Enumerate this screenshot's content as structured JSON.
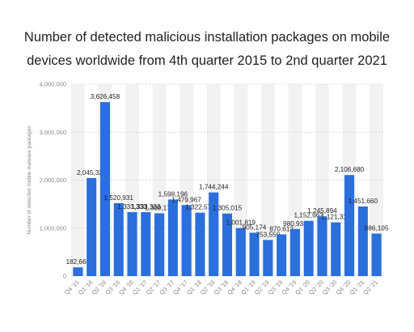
{
  "title_line1": "Number of detected malicious installation packages on mobile",
  "title_line2": "devices worldwide from 4th quarter 2015 to 2nd quarter 2021",
  "chart_data": {
    "type": "bar",
    "ylabel": "Number of detected mobile malware packages",
    "xlabel": "",
    "ylim": [
      0,
      4000000
    ],
    "yticks": [
      0,
      1000000,
      2000000,
      3000000,
      4000000
    ],
    "ytick_labels": [
      "0",
      "1,000,000",
      "2,000,000",
      "3,000,000",
      "4,000,000"
    ],
    "grid": true,
    "bar_color": "#2a6fdb",
    "categories": [
      "Q4 '15",
      "Q1 '16",
      "Q2 '16",
      "Q3 '16",
      "Q4 '16",
      "Q1 '17",
      "Q2 '17",
      "Q3 '17",
      "Q4 '17",
      "Q1 '18",
      "Q2 '18",
      "Q3 '18",
      "Q4 '18",
      "Q1 '19",
      "Q2 '19",
      "Q3 '19",
      "Q4 '19",
      "Q1 '20",
      "Q2 '20",
      "Q3 '20",
      "Q4 '20",
      "Q1 '21",
      "Q2 '21"
    ],
    "values": [
      182669,
      2045323,
      3626458,
      1520931,
      1333333,
      1333333,
      1309178,
      1598196,
      1479967,
      1322578,
      1744244,
      1305015,
      1001819,
      905174,
      753550,
      870612,
      980933,
      1152662,
      1245894,
      1121318,
      2106680,
      1451660,
      886105
    ],
    "labels": [
      "182,669",
      "2,045,323",
      "3,626,458",
      "1,520,931",
      "1,333,333",
      "1,333,333",
      "1,309,178",
      "1,598,196",
      "1,479,967",
      "1,322,578",
      "1,744,244",
      "1,305,015",
      "1,001,819",
      "905,174",
      "753,550",
      "870,612",
      "980,933",
      "1,152,662",
      "1,245,894",
      "1,121,318",
      "2,106,680",
      "1,451,660",
      "886,105"
    ]
  }
}
